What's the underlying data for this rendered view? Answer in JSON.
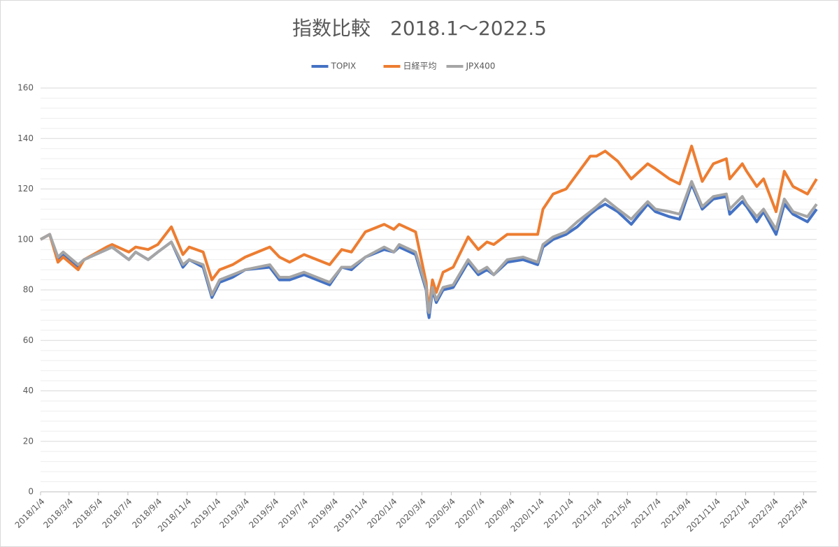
{
  "chart_data": {
    "type": "line",
    "title": "指数比較　2018.1～2022.5",
    "x": [
      "2018/1/4",
      "2018/1/23",
      "2018/2/9",
      "2018/2/20",
      "2018/3/23",
      "2018/4/4",
      "2018/5/21",
      "2018/6/1",
      "2018/7/6",
      "2018/7/20",
      "2018/8/15",
      "2018/9/4",
      "2018/10/2",
      "2018/10/26",
      "2018/11/8",
      "2018/12/7",
      "2018/12/25",
      "2019/1/10",
      "2019/2/6",
      "2019/3/4",
      "2019/4/24",
      "2019/5/14",
      "2019/6/4",
      "2019/7/4",
      "2019/8/26",
      "2019/9/20",
      "2019/10/10",
      "2019/11/8",
      "2019/12/17",
      "2020/1/6",
      "2020/1/17",
      "2020/2/20",
      "2020/3/13",
      "2020/3/17",
      "2020/3/19",
      "2020/3/26",
      "2020/4/3",
      "2020/4/17",
      "2020/5/8",
      "2020/6/8",
      "2020/6/29",
      "2020/7/17",
      "2020/7/31",
      "2020/8/28",
      "2020/9/30",
      "2020/10/30",
      "2020/11/10",
      "2020/12/1",
      "2020/12/28",
      "2021/1/20",
      "2021/2/16",
      "2021/3/1",
      "2021/3/19",
      "2021/4/14",
      "2021/5/12",
      "2021/6/15",
      "2021/7/1",
      "2021/7/30",
      "2021/8/20",
      "2021/9/14",
      "2021/10/6",
      "2021/10/29",
      "2021/11/25",
      "2021/12/2",
      "2021/12/28",
      "2022/1/6",
      "2022/1/27",
      "2022/2/10",
      "2022/3/8",
      "2022/3/25",
      "2022/4/12",
      "2022/5/12",
      "2022/5/31"
    ],
    "series": [
      {
        "name": "TOPIX",
        "color": "#4472c4",
        "values": [
          100,
          102,
          92,
          94,
          89,
          92,
          96,
          97,
          92,
          95,
          92,
          95,
          99,
          89,
          92,
          89,
          77,
          83,
          85,
          88,
          89,
          84,
          84,
          86,
          82,
          89,
          88,
          93,
          96,
          95,
          97,
          94,
          80,
          71,
          69,
          80,
          75,
          80,
          81,
          91,
          86,
          88,
          86,
          91,
          92,
          90,
          97,
          100,
          102,
          105,
          110,
          112,
          114,
          111,
          106,
          114,
          111,
          109,
          108,
          122,
          112,
          116,
          117,
          110,
          115,
          113,
          107,
          111,
          102,
          114,
          110,
          107,
          112
        ]
      },
      {
        "name": "日経平均",
        "color": "#ed7d31",
        "values": [
          100,
          102,
          91,
          93,
          88,
          92,
          97,
          98,
          95,
          97,
          96,
          98,
          105,
          94,
          97,
          95,
          84,
          88,
          90,
          93,
          97,
          93,
          91,
          94,
          90,
          96,
          95,
          103,
          106,
          104,
          106,
          103,
          83,
          74,
          73,
          84,
          79,
          87,
          89,
          101,
          96,
          99,
          98,
          102,
          102,
          102,
          112,
          118,
          120,
          126,
          133,
          133,
          135,
          131,
          124,
          130,
          128,
          124,
          122,
          137,
          123,
          130,
          132,
          124,
          130,
          127,
          121,
          124,
          111,
          127,
          121,
          118,
          124
        ]
      },
      {
        "name": "JPX400",
        "color": "#a5a5a5",
        "values": [
          100,
          102,
          93,
          95,
          90,
          92,
          96,
          97,
          92,
          95,
          92,
          95,
          99,
          90,
          92,
          90,
          78,
          84,
          86,
          88,
          90,
          85,
          85,
          87,
          83,
          89,
          89,
          93,
          97,
          95,
          98,
          95,
          81,
          72,
          71,
          81,
          76,
          81,
          82,
          92,
          87,
          89,
          86,
          92,
          93,
          91,
          98,
          101,
          103,
          107,
          111,
          113,
          116,
          112,
          108,
          115,
          112,
          111,
          110,
          123,
          113,
          117,
          118,
          112,
          117,
          114,
          109,
          112,
          104,
          116,
          111,
          109,
          114
        ]
      }
    ],
    "xlim": [
      "2018/1/4",
      "2022/5/31"
    ],
    "xticks": [
      "2018/1/4",
      "2018/3/4",
      "2018/5/4",
      "2018/7/4",
      "2018/9/4",
      "2018/11/4",
      "2019/1/4",
      "2019/3/4",
      "2019/5/4",
      "2019/7/4",
      "2019/9/4",
      "2019/11/4",
      "2020/1/4",
      "2020/3/4",
      "2020/5/4",
      "2020/7/4",
      "2020/9/4",
      "2020/11/4",
      "2021/1/4",
      "2021/3/4",
      "2021/5/4",
      "2021/7/4",
      "2021/9/4",
      "2021/11/4",
      "2022/1/4",
      "2022/3/4",
      "2022/5/4"
    ],
    "ylim": [
      0,
      160
    ],
    "yticks": [
      0,
      20,
      40,
      60,
      80,
      100,
      120,
      140,
      160
    ],
    "grid": true,
    "legend": "top"
  }
}
